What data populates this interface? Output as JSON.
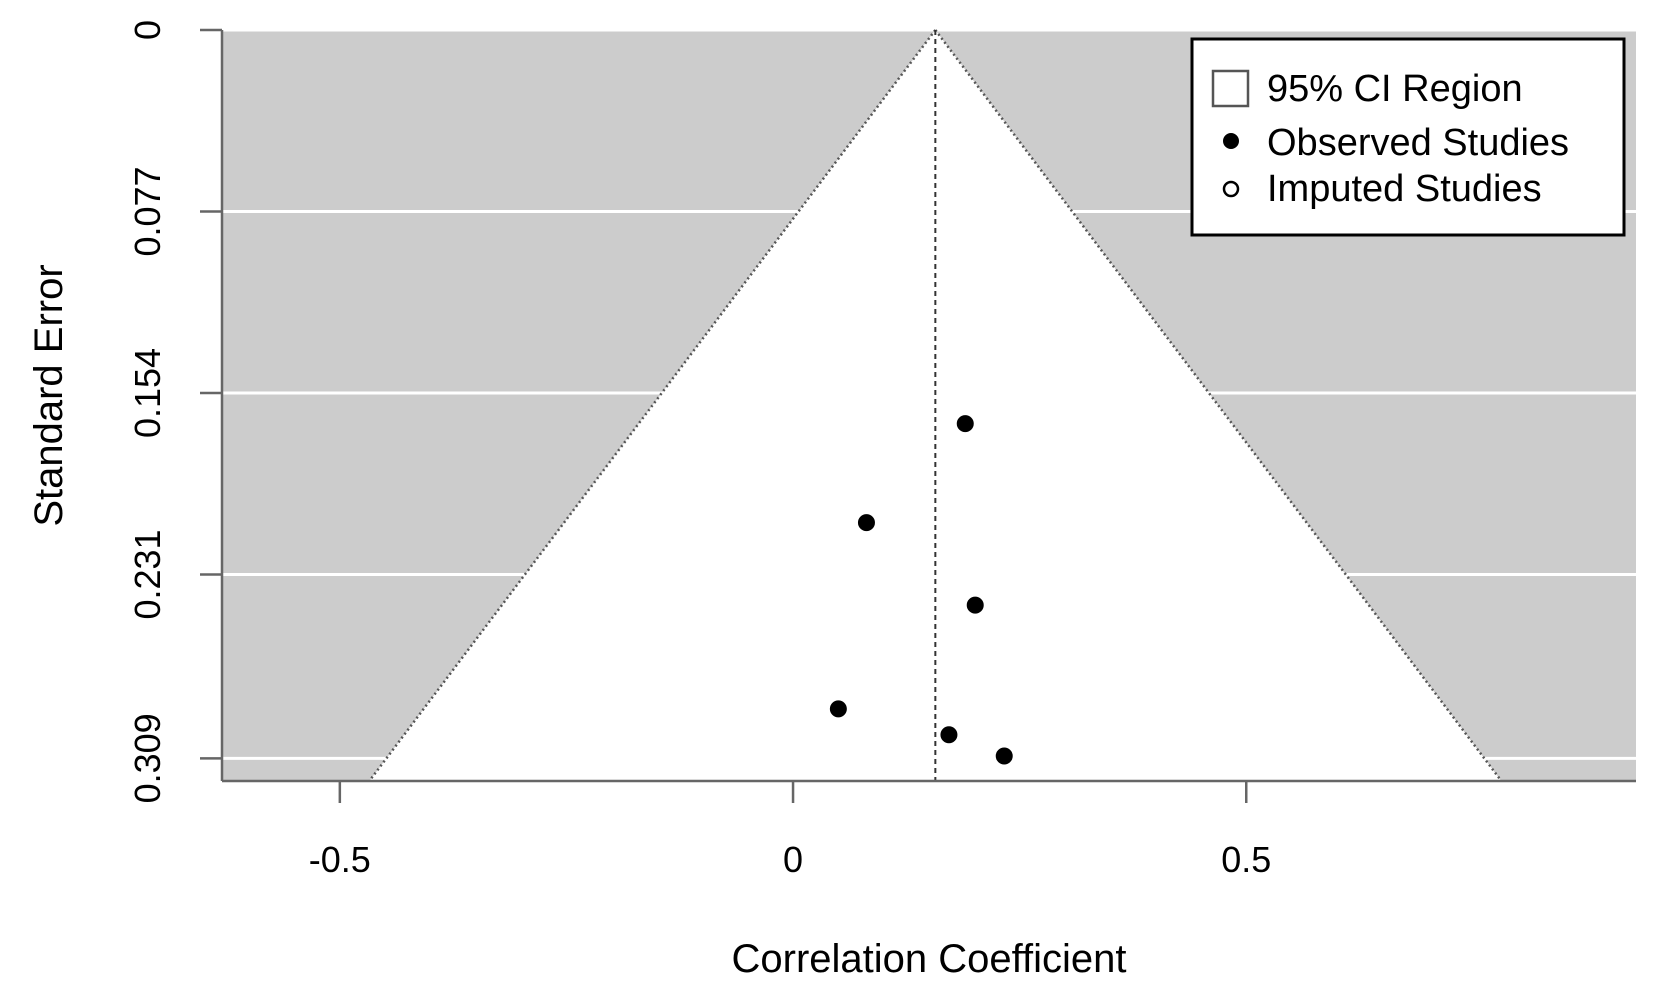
{
  "chart_data": {
    "type": "scatter",
    "subtype": "funnel",
    "title": "",
    "xlabel": "Correlation Coefficient",
    "ylabel": "Standard Error",
    "xlim": [
      -0.63,
      0.93
    ],
    "ylim": [
      0.3186,
      0
    ],
    "x_ticks": [
      -0.5,
      0,
      0.5
    ],
    "x_tick_labels": [
      "-0.5",
      "0",
      "0.5"
    ],
    "y_ticks": [
      0,
      0.077,
      0.154,
      0.231,
      0.309
    ],
    "y_tick_labels": [
      "0",
      "0.077",
      "0.154",
      "0.231",
      "0.309"
    ],
    "y_reversed": true,
    "grid": "horizontal at y ticks (white lines)",
    "background_color": "#cccccc",
    "funnel_fill_color": "#ffffff",
    "pooled_estimate": 0.157,
    "funnel_ci_multiplier": 1.96,
    "legend": {
      "placement": "top-right",
      "entries": [
        {
          "label": "95% CI Region",
          "symbol": "open-square"
        },
        {
          "label": "Observed Studies",
          "symbol": "filled-circle"
        },
        {
          "label": "Imputed Studies",
          "symbol": "open-circle"
        }
      ]
    },
    "series": [
      {
        "name": "Observed Studies",
        "points": [
          {
            "x": 0.19,
            "y": 0.167
          },
          {
            "x": 0.081,
            "y": 0.209
          },
          {
            "x": 0.201,
            "y": 0.244
          },
          {
            "x": 0.05,
            "y": 0.288
          },
          {
            "x": 0.172,
            "y": 0.299
          },
          {
            "x": 0.233,
            "y": 0.308
          }
        ]
      },
      {
        "name": "Imputed Studies",
        "points": []
      }
    ]
  }
}
